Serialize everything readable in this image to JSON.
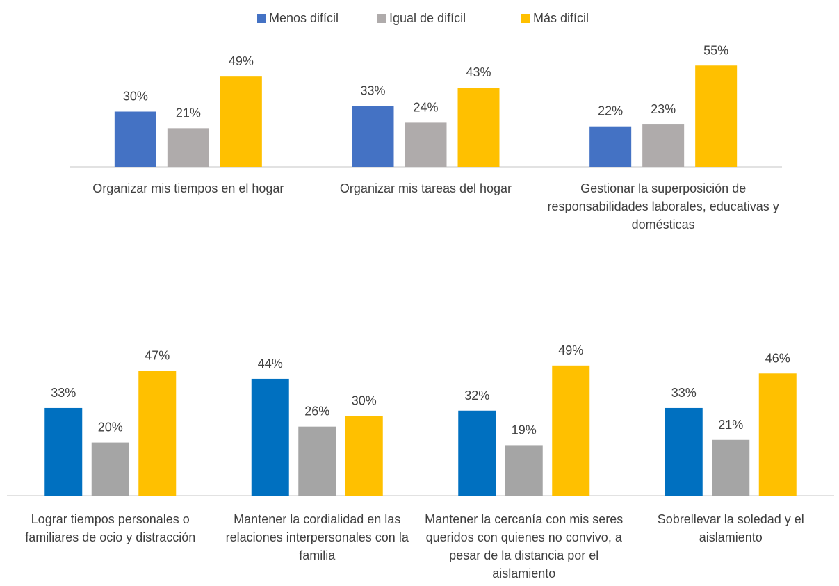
{
  "chart_data": [
    {
      "type": "bar",
      "categories": [
        "Organizar mis tiempos en el hogar",
        "Organizar mis tareas del hogar",
        "Gestionar la superposición de responsabilidades laborales, educativas y domésticas"
      ],
      "series": [
        {
          "name": "Menos difícil",
          "color": "#4472c4",
          "values": [
            30,
            33,
            22
          ],
          "value_labels": [
            "30%",
            "33%",
            "22%"
          ]
        },
        {
          "name": "Igual de difícil",
          "color": "#afabab",
          "values": [
            21,
            24,
            23
          ],
          "value_labels": [
            "21%",
            "24%",
            "23%"
          ]
        },
        {
          "name": "Más  difícil",
          "color": "#ffc000",
          "values": [
            49,
            43,
            55
          ],
          "value_labels": [
            "49%",
            "43%",
            "55%"
          ]
        }
      ]
    },
    {
      "type": "bar",
      "categories": [
        "Lograr tiempos personales o familiares de ocio y distracción",
        "Mantener la cordialidad en las relaciones interpersonales con la familia",
        "Mantener la cercanía con mis seres queridos con quienes no convivo, a pesar de la distancia por el aislamiento",
        "Sobrellevar la soledad y el aislamiento"
      ],
      "series": [
        {
          "color": "#0070c0",
          "values": [
            33,
            44,
            32,
            33
          ],
          "value_labels": [
            "33%",
            "44%",
            "32%",
            "33%"
          ]
        },
        {
          "color": "#a5a5a5",
          "values": [
            20,
            26,
            19,
            21
          ],
          "value_labels": [
            "20%",
            "26%",
            "19%",
            "21%"
          ]
        },
        {
          "color": "#ffc000",
          "values": [
            47,
            30,
            49,
            46
          ],
          "value_labels": [
            "47%",
            "30%",
            "49%",
            "46%"
          ]
        }
      ]
    }
  ]
}
